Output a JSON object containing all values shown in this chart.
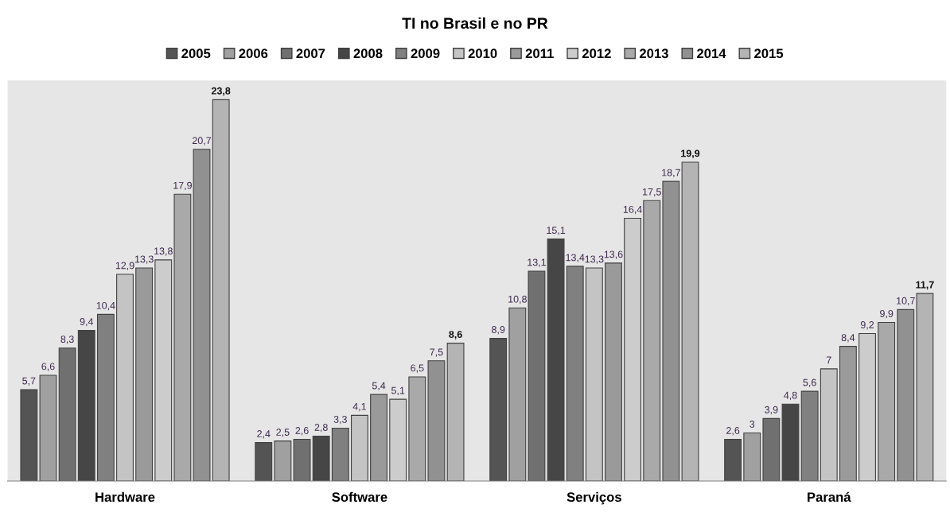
{
  "chart_data": {
    "type": "bar",
    "title": "TI no Brasil e no PR",
    "categories": [
      "Hardware",
      "Software",
      "Serviços",
      "Paraná"
    ],
    "series": [
      {
        "name": "2005",
        "color": "#545454",
        "values": [
          5.7,
          2.4,
          8.9,
          2.6
        ],
        "value_labels": [
          "5,7",
          "2,4",
          "8,9",
          "2,6"
        ]
      },
      {
        "name": "2006",
        "color": "#a0a0a0",
        "values": [
          6.6,
          2.5,
          10.8,
          3
        ],
        "value_labels": [
          "6,6",
          "2,5",
          "10,8",
          "3"
        ]
      },
      {
        "name": "2007",
        "color": "#707070",
        "values": [
          8.3,
          2.6,
          13.1,
          3.9
        ],
        "value_labels": [
          "8,3",
          "2,6",
          "13,1",
          "3,9"
        ]
      },
      {
        "name": "2008",
        "color": "#464646",
        "values": [
          9.4,
          2.8,
          15.1,
          4.8
        ],
        "value_labels": [
          "9,4",
          "2,8",
          "15,1",
          "4,8"
        ]
      },
      {
        "name": "2009",
        "color": "#808080",
        "values": [
          10.4,
          3.3,
          13.4,
          5.6
        ],
        "value_labels": [
          "10,4",
          "3,3",
          "13,4",
          "5,6"
        ]
      },
      {
        "name": "2010",
        "color": "#c4c4c4",
        "values": [
          12.9,
          4.1,
          13.3,
          7
        ],
        "value_labels": [
          "12,9",
          "4,1",
          "13,3",
          "7"
        ]
      },
      {
        "name": "2011",
        "color": "#9a9a9a",
        "values": [
          13.3,
          5.4,
          13.6,
          8.4
        ],
        "value_labels": [
          "13,3",
          "5,4",
          "13,6",
          "8,4"
        ]
      },
      {
        "name": "2012",
        "color": "#cccccc",
        "values": [
          13.8,
          5.1,
          16.4,
          9.2
        ],
        "value_labels": [
          "13,8",
          "5,1",
          "16,4",
          "9,2"
        ]
      },
      {
        "name": "2013",
        "color": "#a9a9a9",
        "values": [
          17.9,
          6.5,
          17.5,
          9.9
        ],
        "value_labels": [
          "17,9",
          "6,5",
          "17,5",
          "9,9"
        ]
      },
      {
        "name": "2014",
        "color": "#919191",
        "values": [
          20.7,
          7.5,
          18.7,
          10.7
        ],
        "value_labels": [
          "20,7",
          "7,5",
          "18,7",
          "10,7"
        ]
      },
      {
        "name": "2015",
        "color": "#b4b4b4",
        "values": [
          23.8,
          8.6,
          19.9,
          11.7
        ],
        "value_labels": [
          "23,8",
          "8,6",
          "19,9",
          "11,7"
        ]
      }
    ],
    "legend": "top",
    "grid": false
  }
}
